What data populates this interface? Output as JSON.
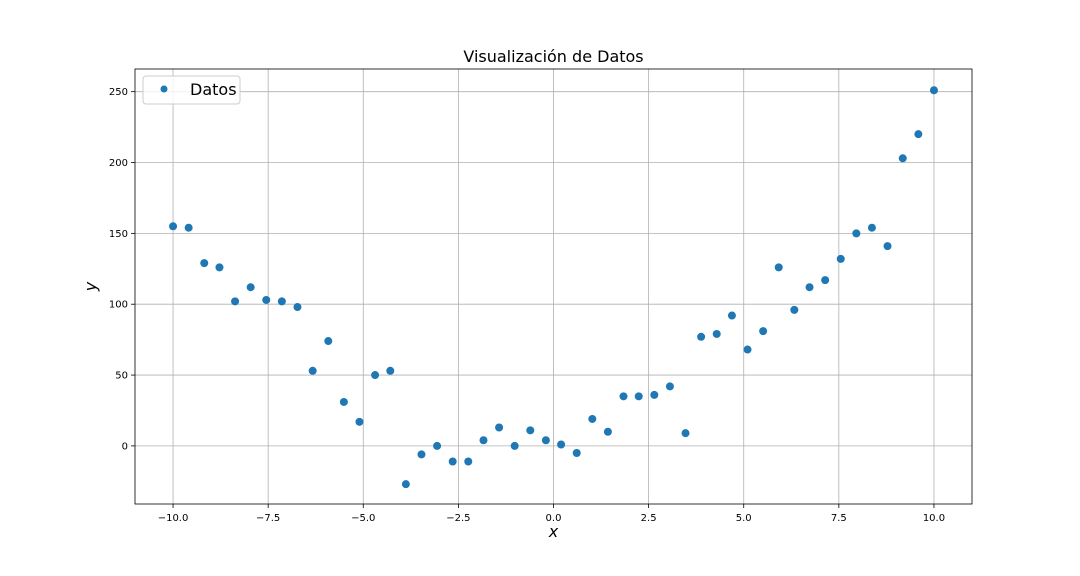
{
  "chart_data": {
    "type": "scatter",
    "title": "Visualización de Datos",
    "xlabel": "x",
    "ylabel": "y",
    "xlim": [
      -11.0,
      11.0
    ],
    "ylim": [
      -41,
      266
    ],
    "xticks": [
      -10.0,
      -7.5,
      -5.0,
      -2.5,
      0.0,
      2.5,
      5.0,
      7.5,
      10.0
    ],
    "xtick_labels": [
      "−10.0",
      "−7.5",
      "−5.0",
      "−2.5",
      "0.0",
      "2.5",
      "5.0",
      "7.5",
      "10.0"
    ],
    "yticks": [
      0,
      50,
      100,
      150,
      200,
      250
    ],
    "ytick_labels": [
      "0",
      "50",
      "100",
      "150",
      "200",
      "250"
    ],
    "grid": true,
    "legend_position": "top-left",
    "series": [
      {
        "name": "Datos",
        "color": "#1f77b4",
        "x": [
          -10.0,
          -9.59,
          -9.18,
          -8.78,
          -8.37,
          -7.96,
          -7.55,
          -7.14,
          -6.73,
          -6.33,
          -5.92,
          -5.51,
          -5.1,
          -4.69,
          -4.29,
          -3.88,
          -3.47,
          -3.06,
          -2.65,
          -2.24,
          -1.84,
          -1.43,
          -1.02,
          -0.61,
          -0.2,
          0.2,
          0.61,
          1.02,
          1.43,
          1.84,
          2.24,
          2.65,
          3.06,
          3.47,
          3.88,
          4.29,
          4.69,
          5.1,
          5.51,
          5.92,
          6.33,
          6.73,
          7.14,
          7.55,
          7.96,
          8.37,
          8.78,
          9.18,
          9.59,
          10.0
        ],
        "y": [
          155,
          154,
          129,
          126,
          102,
          112,
          103,
          102,
          98,
          53,
          74,
          31,
          17,
          50,
          53,
          -27,
          -6,
          0,
          -11,
          -11,
          4,
          13,
          0,
          11,
          4,
          1,
          -5,
          19,
          10,
          35,
          35,
          36,
          42,
          9,
          77,
          79,
          92,
          68,
          81,
          126,
          96,
          112,
          117,
          132,
          150,
          154,
          141,
          203,
          220,
          251
        ]
      }
    ]
  }
}
